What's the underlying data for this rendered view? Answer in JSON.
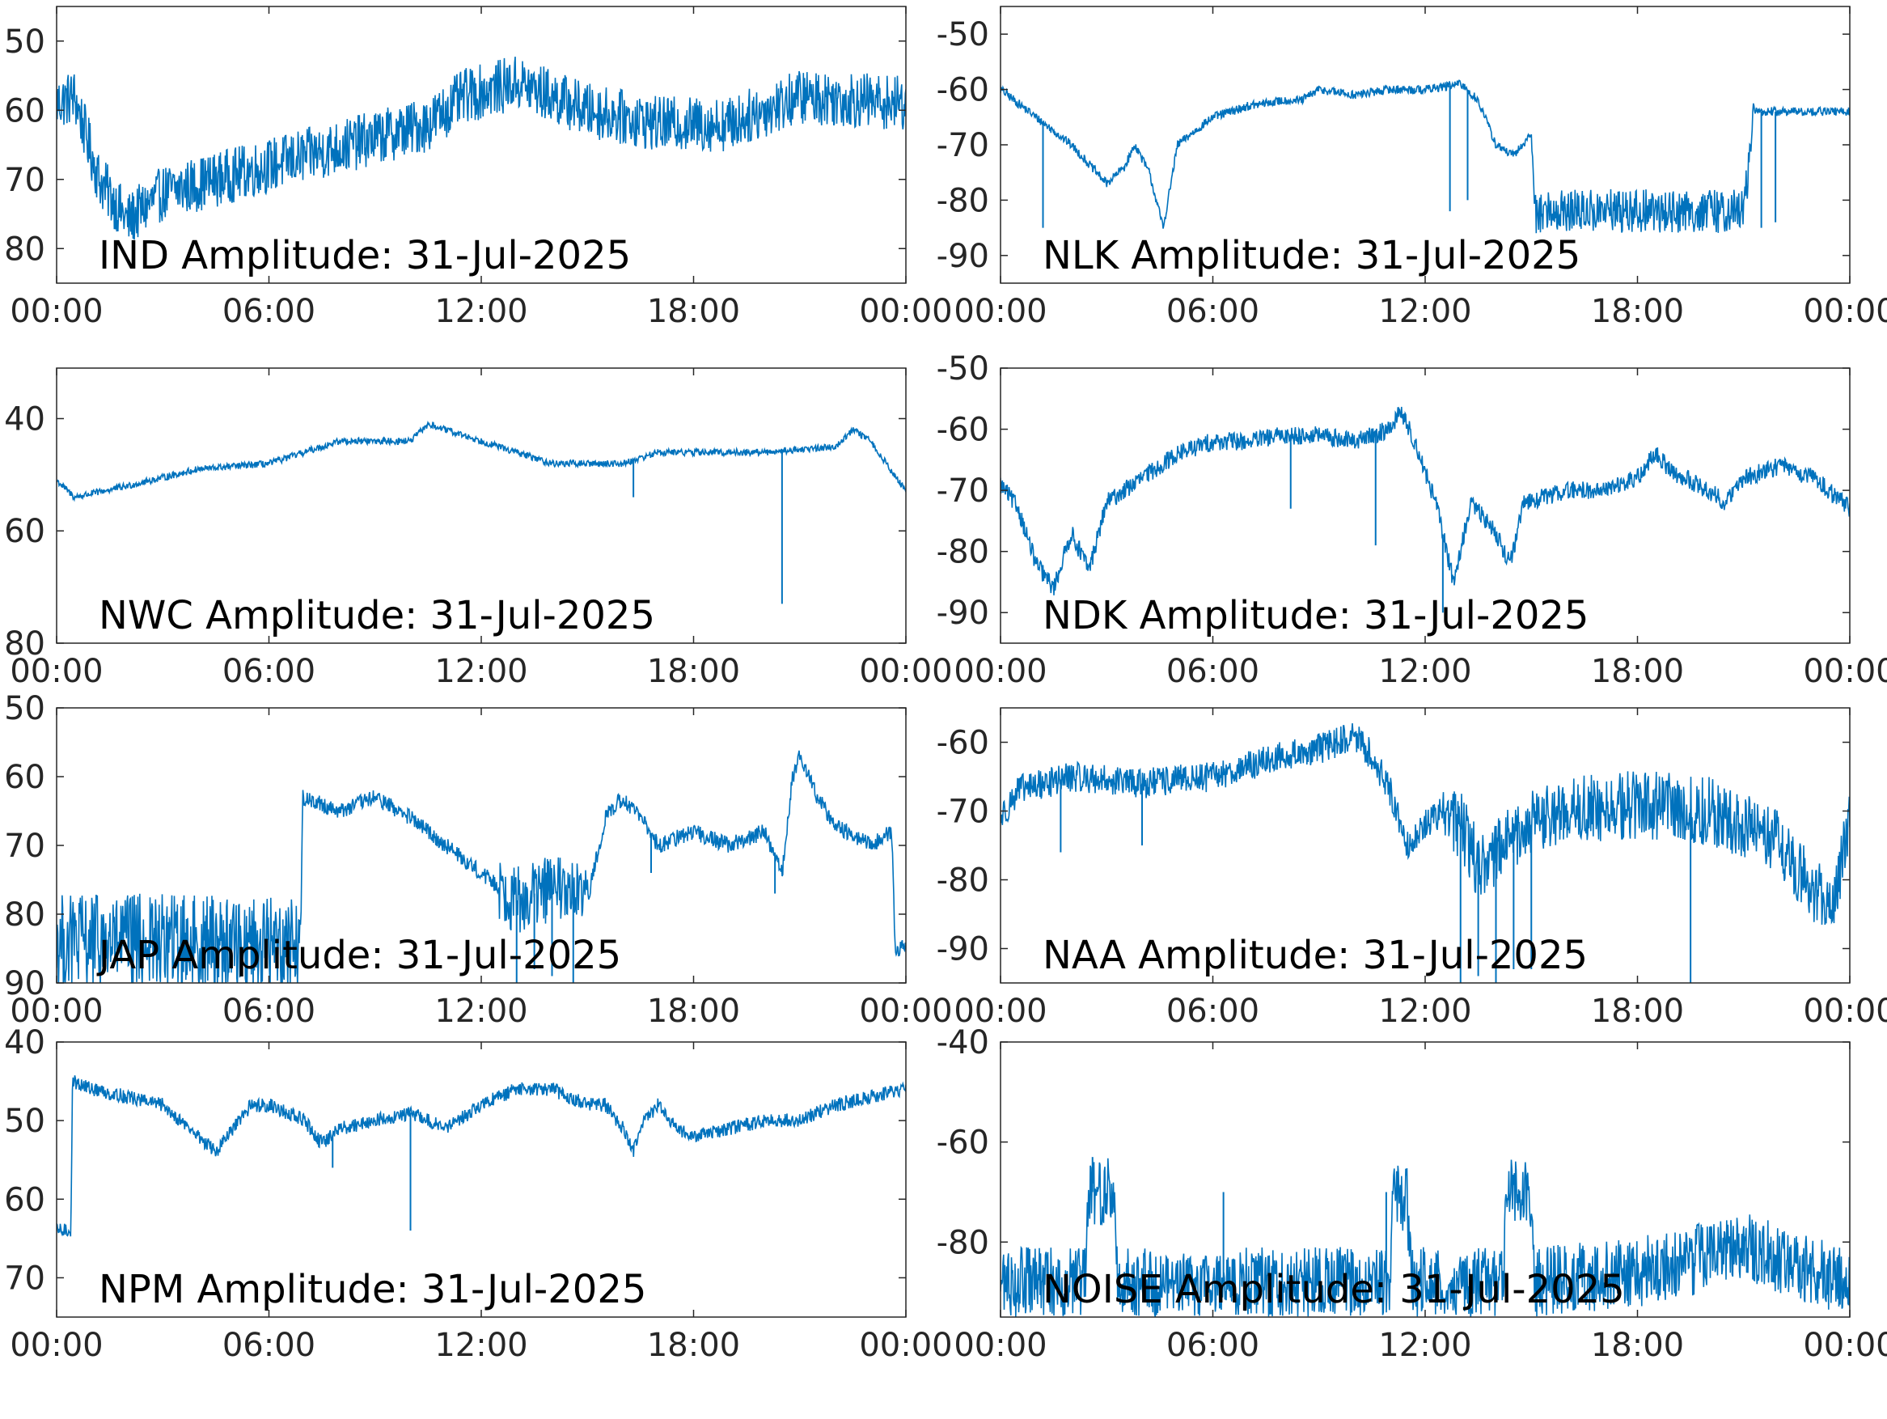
{
  "figure": {
    "line_color": "#0072bd",
    "axis_color": "#262626",
    "background": "#ffffff"
  },
  "chart_data": [
    {
      "id": "ind",
      "type": "line",
      "title": "IND Amplitude: 31-Jul-2025",
      "x_range": [
        "00:00",
        "24:00"
      ],
      "x_ticks": [
        "00:00",
        "06:00",
        "12:00",
        "18:00",
        "00:00"
      ],
      "y_ticks": [
        -50,
        -60,
        -70,
        -80
      ],
      "y_tick_labels": [
        "50",
        "60",
        "70",
        "80"
      ],
      "ylim": [
        -85,
        -45
      ],
      "noise": 4,
      "anchors": [
        [
          0,
          -59
        ],
        [
          0.5,
          -58
        ],
        [
          1.2,
          -70
        ],
        [
          2,
          -76
        ],
        [
          3,
          -72
        ],
        [
          6,
          -68
        ],
        [
          9,
          -64
        ],
        [
          10.5,
          -62
        ],
        [
          11.5,
          -58
        ],
        [
          13,
          -56
        ],
        [
          15,
          -60
        ],
        [
          17,
          -62
        ],
        [
          19,
          -62
        ],
        [
          21,
          -58
        ],
        [
          24,
          -59
        ]
      ],
      "spikes": []
    },
    {
      "id": "nlk",
      "type": "line",
      "title": "NLK Amplitude: 31-Jul-2025",
      "x_range": [
        "00:00",
        "24:00"
      ],
      "x_ticks": [
        "00:00",
        "06:00",
        "12:00",
        "18:00",
        "00:00"
      ],
      "y_ticks": [
        -50,
        -60,
        -70,
        -80,
        -90
      ],
      "y_tick_labels": [
        "-50",
        "-60",
        "-70",
        "-80",
        "-90"
      ],
      "ylim": [
        -95,
        -45
      ],
      "noise": 0.8,
      "anchors": [
        [
          0,
          -60
        ],
        [
          1,
          -65
        ],
        [
          2,
          -70
        ],
        [
          3,
          -77
        ],
        [
          3.5,
          -74
        ],
        [
          3.8,
          -70
        ],
        [
          4.2,
          -75
        ],
        [
          4.6,
          -85
        ],
        [
          5,
          -70
        ],
        [
          6,
          -65
        ],
        [
          7,
          -63
        ],
        [
          8,
          -62
        ],
        [
          8.5,
          -62
        ],
        [
          9,
          -60
        ],
        [
          10,
          -61
        ],
        [
          11,
          -60
        ],
        [
          12,
          -60
        ],
        [
          13,
          -59
        ],
        [
          13.5,
          -62
        ],
        [
          14,
          -70
        ],
        [
          14.5,
          -72
        ],
        [
          15,
          -68
        ],
        [
          15.1,
          -82
        ],
        [
          18,
          -82
        ],
        [
          21,
          -82
        ],
        [
          21.3,
          -64
        ],
        [
          24,
          -64
        ]
      ],
      "noisy_window": [
        15.1,
        21.3,
        4
      ],
      "spikes": [
        [
          1.2,
          -85
        ],
        [
          12.7,
          -82
        ],
        [
          13.2,
          -80
        ],
        [
          21.5,
          -85
        ],
        [
          21.9,
          -84
        ]
      ]
    },
    {
      "id": "nwc",
      "type": "line",
      "title": "NWC Amplitude: 31-Jul-2025",
      "x_range": [
        "00:00",
        "24:00"
      ],
      "x_ticks": [
        "00:00",
        "06:00",
        "12:00",
        "18:00",
        "00:00"
      ],
      "y_ticks": [
        -40,
        -60,
        -80
      ],
      "y_tick_labels": [
        "40",
        "60",
        "80"
      ],
      "ylim": [
        -80,
        -31
      ],
      "noise": 0.6,
      "anchors": [
        [
          0,
          -51
        ],
        [
          0.5,
          -54
        ],
        [
          2,
          -52
        ],
        [
          4,
          -49
        ],
        [
          6,
          -48
        ],
        [
          7,
          -46
        ],
        [
          8,
          -44
        ],
        [
          10,
          -44
        ],
        [
          10.5,
          -41
        ],
        [
          12,
          -44
        ],
        [
          13,
          -46
        ],
        [
          14,
          -48
        ],
        [
          15,
          -48
        ],
        [
          16,
          -48
        ],
        [
          16.5,
          -47
        ],
        [
          17,
          -46
        ],
        [
          18,
          -46
        ],
        [
          20,
          -46
        ],
        [
          22,
          -45
        ],
        [
          22.5,
          -42
        ],
        [
          23,
          -44
        ],
        [
          24,
          -53
        ]
      ],
      "spikes": [
        [
          20.5,
          -73
        ],
        [
          16.3,
          -54
        ]
      ]
    },
    {
      "id": "ndk",
      "type": "line",
      "title": "NDK Amplitude: 31-Jul-2025",
      "x_range": [
        "00:00",
        "24:00"
      ],
      "x_ticks": [
        "00:00",
        "06:00",
        "12:00",
        "18:00",
        "00:00"
      ],
      "y_ticks": [
        -50,
        -60,
        -70,
        -80,
        -90
      ],
      "y_tick_labels": [
        "-50",
        "-60",
        "-70",
        "-80",
        "-90"
      ],
      "ylim": [
        -95,
        -50
      ],
      "noise": 1.5,
      "anchors": [
        [
          0,
          -69
        ],
        [
          0.5,
          -73
        ],
        [
          1,
          -82
        ],
        [
          1.5,
          -86
        ],
        [
          2,
          -77
        ],
        [
          2.5,
          -83
        ],
        [
          3,
          -72
        ],
        [
          3.5,
          -70
        ],
        [
          4,
          -68
        ],
        [
          4.5,
          -66
        ],
        [
          5,
          -64
        ],
        [
          6,
          -62
        ],
        [
          7,
          -62
        ],
        [
          8,
          -61
        ],
        [
          9,
          -61
        ],
        [
          10,
          -62
        ],
        [
          11,
          -60
        ],
        [
          11.3,
          -57
        ],
        [
          11.7,
          -62
        ],
        [
          12.3,
          -72
        ],
        [
          12.8,
          -85
        ],
        [
          13.3,
          -72
        ],
        [
          14,
          -77
        ],
        [
          14.4,
          -82
        ],
        [
          14.8,
          -72
        ],
        [
          16,
          -70
        ],
        [
          17,
          -70
        ],
        [
          18,
          -68
        ],
        [
          18.5,
          -64
        ],
        [
          19,
          -67
        ],
        [
          20,
          -70
        ],
        [
          20.5,
          -72
        ],
        [
          21,
          -68
        ],
        [
          22,
          -66
        ],
        [
          23,
          -68
        ],
        [
          24,
          -73
        ]
      ],
      "spikes": [
        [
          8.2,
          -73
        ],
        [
          10.6,
          -79
        ],
        [
          12.5,
          -90
        ]
      ]
    },
    {
      "id": "jap",
      "type": "line",
      "title": "JAP Amplitude: 31-Jul-2025",
      "x_range": [
        "00:00",
        "24:00"
      ],
      "x_ticks": [
        "00:00",
        "06:00",
        "12:00",
        "18:00",
        "00:00"
      ],
      "y_ticks": [
        -50,
        -60,
        -70,
        -80,
        -90
      ],
      "y_tick_labels": [
        "50",
        "60",
        "70",
        "80",
        "90"
      ],
      "ylim": [
        -90,
        -50
      ],
      "noise": 1.2,
      "anchors": [
        [
          0,
          -84
        ],
        [
          6.9,
          -84
        ],
        [
          6.95,
          -63
        ],
        [
          8,
          -65
        ],
        [
          9,
          -63
        ],
        [
          10,
          -66
        ],
        [
          11,
          -70
        ],
        [
          12,
          -74
        ],
        [
          13,
          -78
        ],
        [
          14,
          -76
        ],
        [
          15,
          -78
        ],
        [
          15.5,
          -66
        ],
        [
          16,
          -63
        ],
        [
          16.5,
          -66
        ],
        [
          17,
          -70
        ],
        [
          18,
          -68
        ],
        [
          19,
          -70
        ],
        [
          20,
          -68
        ],
        [
          20.5,
          -74
        ],
        [
          20.8,
          -60
        ],
        [
          21,
          -57
        ],
        [
          21.5,
          -63
        ],
        [
          22,
          -67
        ],
        [
          23,
          -70
        ],
        [
          23.6,
          -68
        ],
        [
          23.7,
          -86
        ],
        [
          24,
          -84
        ]
      ],
      "noisy_window": [
        0,
        6.9,
        7
      ],
      "noisy_window_2": [
        12.5,
        15,
        5
      ],
      "spikes": [
        [
          13,
          -90
        ],
        [
          13.5,
          -88
        ],
        [
          14,
          -89
        ],
        [
          14.6,
          -90
        ],
        [
          20.3,
          -77
        ],
        [
          16.8,
          -74
        ]
      ]
    },
    {
      "id": "naa",
      "type": "line",
      "title": "NAA Amplitude: 31-Jul-2025",
      "x_range": [
        "00:00",
        "24:00"
      ],
      "x_ticks": [
        "00:00",
        "06:00",
        "12:00",
        "18:00",
        "00:00"
      ],
      "y_ticks": [
        -60,
        -70,
        -80,
        -90
      ],
      "y_tick_labels": [
        "-60",
        "-70",
        "-80",
        "-90"
      ],
      "ylim": [
        -95,
        -55
      ],
      "noise": 2.2,
      "anchors": [
        [
          0,
          -71
        ],
        [
          0.5,
          -67
        ],
        [
          2,
          -65
        ],
        [
          4,
          -66
        ],
        [
          6,
          -65
        ],
        [
          8,
          -62
        ],
        [
          9,
          -61
        ],
        [
          10,
          -59
        ],
        [
          10.5,
          -62
        ],
        [
          11,
          -67
        ],
        [
          11.5,
          -75
        ],
        [
          12,
          -72
        ],
        [
          12.5,
          -70
        ],
        [
          13,
          -72
        ],
        [
          13.5,
          -78
        ],
        [
          14,
          -76
        ],
        [
          15,
          -72
        ],
        [
          16,
          -70
        ],
        [
          18,
          -69
        ],
        [
          20,
          -70
        ],
        [
          21,
          -72
        ],
        [
          22,
          -75
        ],
        [
          23,
          -82
        ],
        [
          23.5,
          -83
        ],
        [
          24,
          -72
        ]
      ],
      "noisy_window": [
        12.5,
        24,
        5
      ],
      "spikes": [
        [
          1.7,
          -76
        ],
        [
          4,
          -75
        ],
        [
          13,
          -95
        ],
        [
          13.5,
          -94
        ],
        [
          14,
          -95
        ],
        [
          14.5,
          -93
        ],
        [
          15,
          -93
        ],
        [
          19.5,
          -95
        ]
      ]
    },
    {
      "id": "npm",
      "type": "line",
      "title": "NPM Amplitude: 31-Jul-2025",
      "x_range": [
        "00:00",
        "24:00"
      ],
      "x_ticks": [
        "00:00",
        "06:00",
        "12:00",
        "18:00",
        "00:00"
      ],
      "y_ticks": [
        -40,
        -50,
        -60,
        -70
      ],
      "y_tick_labels": [
        "40",
        "50",
        "60",
        "70"
      ],
      "ylim": [
        -75,
        -40
      ],
      "noise": 0.9,
      "anchors": [
        [
          0,
          -64
        ],
        [
          0.4,
          -64
        ],
        [
          0.45,
          -45
        ],
        [
          1,
          -46
        ],
        [
          2,
          -47
        ],
        [
          3,
          -48
        ],
        [
          4,
          -52
        ],
        [
          4.5,
          -54
        ],
        [
          5,
          -51
        ],
        [
          5.5,
          -48
        ],
        [
          6,
          -48
        ],
        [
          7,
          -50
        ],
        [
          7.5,
          -53
        ],
        [
          8,
          -51
        ],
        [
          9,
          -50
        ],
        [
          10,
          -49
        ],
        [
          11,
          -51
        ],
        [
          12,
          -48
        ],
        [
          13,
          -46
        ],
        [
          14,
          -46
        ],
        [
          15,
          -48
        ],
        [
          15.5,
          -48
        ],
        [
          16,
          -51
        ],
        [
          16.3,
          -54
        ],
        [
          16.6,
          -50
        ],
        [
          17,
          -48
        ],
        [
          17.5,
          -51
        ],
        [
          18,
          -52
        ],
        [
          19,
          -51
        ],
        [
          20,
          -50
        ],
        [
          21,
          -50
        ],
        [
          22,
          -48
        ],
        [
          23,
          -47
        ],
        [
          24,
          -46
        ]
      ],
      "spikes": [
        [
          10,
          -64
        ],
        [
          7.8,
          -56
        ]
      ]
    },
    {
      "id": "noise",
      "type": "line",
      "title": "NOISE Amplitude: 31-Jul-2025",
      "x_range": [
        "00:00",
        "24:00"
      ],
      "x_ticks": [
        "00:00",
        "06:00",
        "12:00",
        "18:00",
        "00:00"
      ],
      "y_ticks": [
        -40,
        -60,
        -80
      ],
      "y_tick_labels": [
        "-40",
        "-60",
        "-80"
      ],
      "ylim": [
        -95,
        -40
      ],
      "noise": 7,
      "anchors": [
        [
          0,
          -88
        ],
        [
          2.4,
          -88
        ],
        [
          2.5,
          -70
        ],
        [
          3.2,
          -70
        ],
        [
          3.3,
          -88
        ],
        [
          11,
          -88
        ],
        [
          11.1,
          -70
        ],
        [
          11.5,
          -72
        ],
        [
          11.6,
          -88
        ],
        [
          14.2,
          -88
        ],
        [
          14.3,
          -70
        ],
        [
          15,
          -70
        ],
        [
          15.1,
          -88
        ],
        [
          18,
          -86
        ],
        [
          20,
          -83
        ],
        [
          21,
          -81
        ],
        [
          24,
          -88
        ]
      ],
      "spikes": [
        [
          2.6,
          -63
        ],
        [
          6.3,
          -70
        ],
        [
          10.9,
          -70
        ]
      ]
    }
  ]
}
